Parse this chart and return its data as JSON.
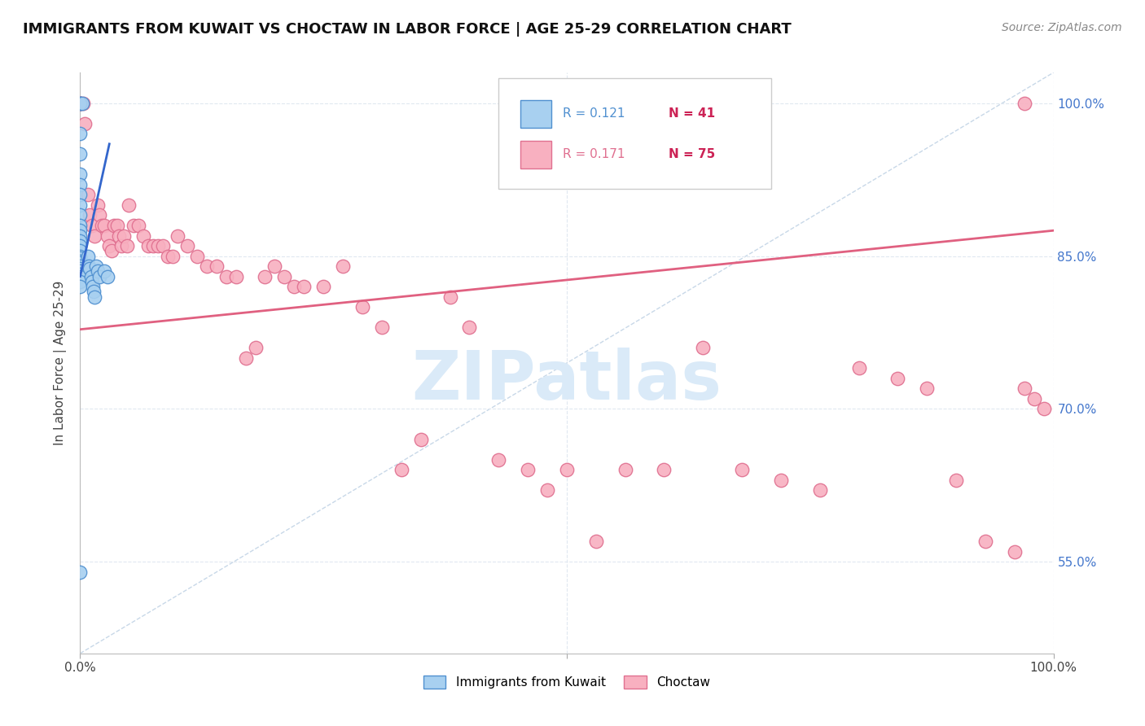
{
  "title": "IMMIGRANTS FROM KUWAIT VS CHOCTAW IN LABOR FORCE | AGE 25-29 CORRELATION CHART",
  "source": "Source: ZipAtlas.com",
  "ylabel": "In Labor Force | Age 25-29",
  "ytick_positions": [
    0.55,
    0.7,
    0.85,
    1.0
  ],
  "ytick_labels": [
    "55.0%",
    "70.0%",
    "85.0%",
    "100.0%"
  ],
  "xlim": [
    0.0,
    1.0
  ],
  "ylim": [
    0.46,
    1.03
  ],
  "blue_color": "#a8d0f0",
  "blue_edge": "#5090d0",
  "pink_color": "#f8b0c0",
  "pink_edge": "#e07090",
  "blue_line_color": "#3366cc",
  "pink_line_color": "#e06080",
  "diag_color": "#c8d8e8",
  "grid_color": "#e0e8f0",
  "watermark_text": "ZIPatlas",
  "watermark_color": "#daeaf8",
  "watermark_fontsize": 60,
  "title_fontsize": 13,
  "source_fontsize": 10,
  "axis_label_fontsize": 11,
  "tick_fontsize": 11,
  "kuwait_x": [
    0.0,
    0.0,
    0.002,
    0.0,
    0.0,
    0.0,
    0.0,
    0.0,
    0.0,
    0.0,
    0.0,
    0.0,
    0.0,
    0.0,
    0.0,
    0.0,
    0.0,
    0.0,
    0.0,
    0.0,
    0.0,
    0.0,
    0.0,
    0.0,
    0.0,
    0.0,
    0.0,
    0.008,
    0.009,
    0.01,
    0.011,
    0.012,
    0.013,
    0.014,
    0.015,
    0.016,
    0.018,
    0.02,
    0.025,
    0.028,
    0.0
  ],
  "kuwait_y": [
    1.0,
    1.0,
    1.0,
    0.97,
    0.95,
    0.93,
    0.92,
    0.91,
    0.9,
    0.89,
    0.88,
    0.875,
    0.87,
    0.865,
    0.86,
    0.855,
    0.85,
    0.848,
    0.845,
    0.843,
    0.84,
    0.838,
    0.835,
    0.832,
    0.83,
    0.825,
    0.82,
    0.85,
    0.84,
    0.838,
    0.83,
    0.825,
    0.82,
    0.815,
    0.81,
    0.84,
    0.835,
    0.83,
    0.835,
    0.83,
    0.54
  ],
  "choctaw_x": [
    0.0,
    0.0,
    0.0,
    0.003,
    0.005,
    0.008,
    0.01,
    0.012,
    0.015,
    0.018,
    0.02,
    0.022,
    0.025,
    0.028,
    0.03,
    0.032,
    0.035,
    0.038,
    0.04,
    0.042,
    0.045,
    0.048,
    0.05,
    0.055,
    0.06,
    0.065,
    0.07,
    0.075,
    0.08,
    0.085,
    0.09,
    0.095,
    0.1,
    0.11,
    0.12,
    0.13,
    0.14,
    0.15,
    0.16,
    0.17,
    0.18,
    0.19,
    0.2,
    0.21,
    0.22,
    0.23,
    0.25,
    0.27,
    0.29,
    0.31,
    0.33,
    0.35,
    0.38,
    0.4,
    0.43,
    0.46,
    0.48,
    0.5,
    0.53,
    0.56,
    0.6,
    0.64,
    0.68,
    0.72,
    0.76,
    0.8,
    0.84,
    0.87,
    0.9,
    0.93,
    0.96,
    0.97,
    0.98,
    0.99,
    0.97
  ],
  "choctaw_y": [
    1.0,
    1.0,
    1.0,
    1.0,
    0.98,
    0.91,
    0.89,
    0.88,
    0.87,
    0.9,
    0.89,
    0.88,
    0.88,
    0.87,
    0.86,
    0.855,
    0.88,
    0.88,
    0.87,
    0.86,
    0.87,
    0.86,
    0.9,
    0.88,
    0.88,
    0.87,
    0.86,
    0.86,
    0.86,
    0.86,
    0.85,
    0.85,
    0.87,
    0.86,
    0.85,
    0.84,
    0.84,
    0.83,
    0.83,
    0.75,
    0.76,
    0.83,
    0.84,
    0.83,
    0.82,
    0.82,
    0.82,
    0.84,
    0.8,
    0.78,
    0.64,
    0.67,
    0.81,
    0.78,
    0.65,
    0.64,
    0.62,
    0.64,
    0.57,
    0.64,
    0.64,
    0.76,
    0.64,
    0.63,
    0.62,
    0.74,
    0.73,
    0.72,
    0.63,
    0.57,
    0.56,
    0.72,
    0.71,
    0.7,
    1.0
  ],
  "kuwait_r": 0.121,
  "kuwait_n": 41,
  "choctaw_r": 0.171,
  "choctaw_n": 75
}
